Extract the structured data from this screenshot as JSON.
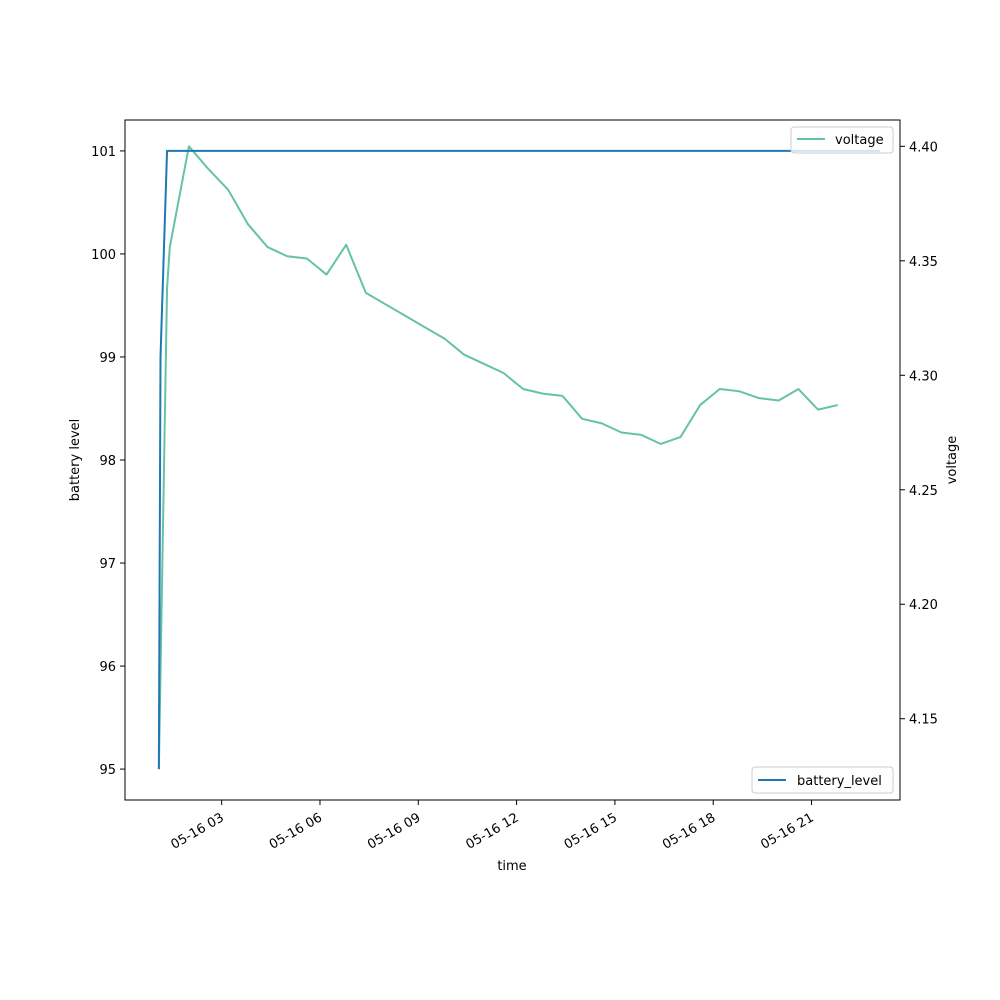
{
  "chart_data": {
    "type": "line",
    "title": "",
    "xlabel": "time",
    "ylabel": "battery level",
    "y2label": "voltage",
    "xlim": [
      "2025-05-16T00:03:00",
      "2025-05-16T23:42:00"
    ],
    "ylim": [
      94.7,
      101.3
    ],
    "y2lim": [
      4.1145,
      4.4115
    ],
    "x_ticks": [
      {
        "value": "2025-05-16T03:00:00",
        "label": "05-16 03"
      },
      {
        "value": "2025-05-16T06:00:00",
        "label": "05-16 06"
      },
      {
        "value": "2025-05-16T09:00:00",
        "label": "05-16 09"
      },
      {
        "value": "2025-05-16T12:00:00",
        "label": "05-16 12"
      },
      {
        "value": "2025-05-16T15:00:00",
        "label": "05-16 15"
      },
      {
        "value": "2025-05-16T18:00:00",
        "label": "05-16 18"
      },
      {
        "value": "2025-05-16T21:00:00",
        "label": "05-16 21"
      }
    ],
    "y_ticks": [
      "95",
      "96",
      "97",
      "98",
      "99",
      "100",
      "101"
    ],
    "y2_ticks": [
      "4.15",
      "4.20",
      "4.25",
      "4.30",
      "4.35",
      "4.40"
    ],
    "grid": false,
    "series": [
      {
        "name": "battery_level",
        "axis": "left",
        "color": "#1f77b4",
        "legend_position": "lower-right",
        "points": [
          {
            "x": "2025-05-16T01:05:00",
            "y": 95
          },
          {
            "x": "2025-05-16T01:08:00",
            "y": 99
          },
          {
            "x": "2025-05-16T01:20:00",
            "y": 101
          },
          {
            "x": "2025-05-16T23:06:00",
            "y": 101
          }
        ]
      },
      {
        "name": "voltage",
        "axis": "right",
        "color": "#66c2a5",
        "legend_position": "upper-right",
        "points": [
          {
            "x": "2025-05-16T01:05:00",
            "y": 4.128
          },
          {
            "x": "2025-05-16T01:20:00",
            "y": 4.338
          },
          {
            "x": "2025-05-16T01:25:00",
            "y": 4.356
          },
          {
            "x": "2025-05-16T02:00:00",
            "y": 4.4
          },
          {
            "x": "2025-05-16T02:36:00",
            "y": 4.39
          },
          {
            "x": "2025-05-16T03:12:00",
            "y": 4.381
          },
          {
            "x": "2025-05-16T03:48:00",
            "y": 4.366
          },
          {
            "x": "2025-05-16T04:24:00",
            "y": 4.356
          },
          {
            "x": "2025-05-16T05:00:00",
            "y": 4.352
          },
          {
            "x": "2025-05-16T05:36:00",
            "y": 4.351
          },
          {
            "x": "2025-05-16T06:12:00",
            "y": 4.344
          },
          {
            "x": "2025-05-16T06:48:00",
            "y": 4.357
          },
          {
            "x": "2025-05-16T07:24:00",
            "y": 4.336
          },
          {
            "x": "2025-05-16T08:00:00",
            "y": 4.331
          },
          {
            "x": "2025-05-16T08:36:00",
            "y": 4.326
          },
          {
            "x": "2025-05-16T09:12:00",
            "y": 4.321
          },
          {
            "x": "2025-05-16T09:48:00",
            "y": 4.316
          },
          {
            "x": "2025-05-16T10:24:00",
            "y": 4.309
          },
          {
            "x": "2025-05-16T11:00:00",
            "y": 4.305
          },
          {
            "x": "2025-05-16T11:36:00",
            "y": 4.301
          },
          {
            "x": "2025-05-16T12:12:00",
            "y": 4.294
          },
          {
            "x": "2025-05-16T12:48:00",
            "y": 4.292
          },
          {
            "x": "2025-05-16T13:24:00",
            "y": 4.291
          },
          {
            "x": "2025-05-16T14:00:00",
            "y": 4.281
          },
          {
            "x": "2025-05-16T14:36:00",
            "y": 4.279
          },
          {
            "x": "2025-05-16T15:12:00",
            "y": 4.275
          },
          {
            "x": "2025-05-16T15:48:00",
            "y": 4.274
          },
          {
            "x": "2025-05-16T16:24:00",
            "y": 4.27
          },
          {
            "x": "2025-05-16T17:00:00",
            "y": 4.273
          },
          {
            "x": "2025-05-16T17:36:00",
            "y": 4.287
          },
          {
            "x": "2025-05-16T18:12:00",
            "y": 4.294
          },
          {
            "x": "2025-05-16T18:48:00",
            "y": 4.293
          },
          {
            "x": "2025-05-16T19:24:00",
            "y": 4.29
          },
          {
            "x": "2025-05-16T20:00:00",
            "y": 4.289
          },
          {
            "x": "2025-05-16T20:36:00",
            "y": 4.294
          },
          {
            "x": "2025-05-16T21:12:00",
            "y": 4.285
          },
          {
            "x": "2025-05-16T21:48:00",
            "y": 4.287
          }
        ]
      }
    ]
  }
}
